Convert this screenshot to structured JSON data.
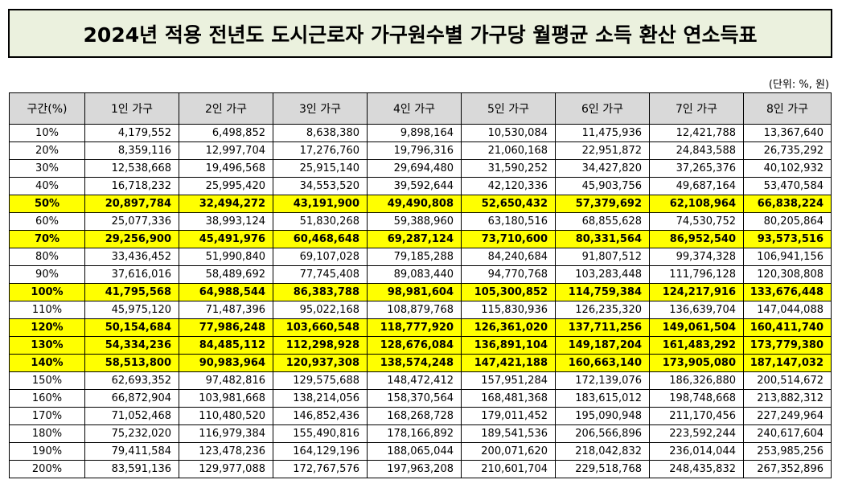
{
  "title": "2024년 적용 전년도 도시근로자 가구원수별 가구당 월평균 소득 환산 연소득표",
  "unit_note": "(단위: %, 원)",
  "colors": {
    "title_bg": "#ebf1de",
    "header_bg": "#d9d9d9",
    "highlight": "#ffff00"
  },
  "headers": [
    "구간(%)",
    "1인 가구",
    "2인 가구",
    "3인 가구",
    "4인 가구",
    "5인 가구",
    "6인 가구",
    "7인 가구",
    "8인 가구"
  ],
  "rows": [
    {
      "pct": "10%",
      "hl": false,
      "values": [
        "4,179,552",
        "6,498,852",
        "8,638,380",
        "9,898,164",
        "10,530,084",
        "11,475,936",
        "12,421,788",
        "13,367,640"
      ]
    },
    {
      "pct": "20%",
      "hl": false,
      "values": [
        "8,359,116",
        "12,997,704",
        "17,276,760",
        "19,796,316",
        "21,060,168",
        "22,951,872",
        "24,843,588",
        "26,735,292"
      ]
    },
    {
      "pct": "30%",
      "hl": false,
      "values": [
        "12,538,668",
        "19,496,568",
        "25,915,140",
        "29,694,480",
        "31,590,252",
        "34,427,820",
        "37,265,376",
        "40,102,932"
      ]
    },
    {
      "pct": "40%",
      "hl": false,
      "values": [
        "16,718,232",
        "25,995,420",
        "34,553,520",
        "39,592,644",
        "42,120,336",
        "45,903,756",
        "49,687,164",
        "53,470,584"
      ]
    },
    {
      "pct": "50%",
      "hl": true,
      "values": [
        "20,897,784",
        "32,494,272",
        "43,191,900",
        "49,490,808",
        "52,650,432",
        "57,379,692",
        "62,108,964",
        "66,838,224"
      ]
    },
    {
      "pct": "60%",
      "hl": false,
      "values": [
        "25,077,336",
        "38,993,124",
        "51,830,268",
        "59,388,960",
        "63,180,516",
        "68,855,628",
        "74,530,752",
        "80,205,864"
      ]
    },
    {
      "pct": "70%",
      "hl": true,
      "values": [
        "29,256,900",
        "45,491,976",
        "60,468,648",
        "69,287,124",
        "73,710,600",
        "80,331,564",
        "86,952,540",
        "93,573,516"
      ]
    },
    {
      "pct": "80%",
      "hl": false,
      "values": [
        "33,436,452",
        "51,990,840",
        "69,107,028",
        "79,185,288",
        "84,240,684",
        "91,807,512",
        "99,374,328",
        "106,941,156"
      ]
    },
    {
      "pct": "90%",
      "hl": false,
      "values": [
        "37,616,016",
        "58,489,692",
        "77,745,408",
        "89,083,440",
        "94,770,768",
        "103,283,448",
        "111,796,128",
        "120,308,808"
      ]
    },
    {
      "pct": "100%",
      "hl": true,
      "values": [
        "41,795,568",
        "64,988,544",
        "86,383,788",
        "98,981,604",
        "105,300,852",
        "114,759,384",
        "124,217,916",
        "133,676,448"
      ]
    },
    {
      "pct": "110%",
      "hl": false,
      "values": [
        "45,975,120",
        "71,487,396",
        "95,022,168",
        "108,879,768",
        "115,830,936",
        "126,235,320",
        "136,639,704",
        "147,044,088"
      ]
    },
    {
      "pct": "120%",
      "hl": true,
      "values": [
        "50,154,684",
        "77,986,248",
        "103,660,548",
        "118,777,920",
        "126,361,020",
        "137,711,256",
        "149,061,504",
        "160,411,740"
      ]
    },
    {
      "pct": "130%",
      "hl": true,
      "values": [
        "54,334,236",
        "84,485,112",
        "112,298,928",
        "128,676,084",
        "136,891,104",
        "149,187,204",
        "161,483,292",
        "173,779,380"
      ]
    },
    {
      "pct": "140%",
      "hl": true,
      "values": [
        "58,513,800",
        "90,983,964",
        "120,937,308",
        "138,574,248",
        "147,421,188",
        "160,663,140",
        "173,905,080",
        "187,147,032"
      ]
    },
    {
      "pct": "150%",
      "hl": false,
      "values": [
        "62,693,352",
        "97,482,816",
        "129,575,688",
        "148,472,412",
        "157,951,284",
        "172,139,076",
        "186,326,880",
        "200,514,672"
      ]
    },
    {
      "pct": "160%",
      "hl": false,
      "values": [
        "66,872,904",
        "103,981,668",
        "138,214,056",
        "158,370,564",
        "168,481,368",
        "183,615,012",
        "198,748,668",
        "213,882,312"
      ]
    },
    {
      "pct": "170%",
      "hl": false,
      "values": [
        "71,052,468",
        "110,480,520",
        "146,852,436",
        "168,268,728",
        "179,011,452",
        "195,090,948",
        "211,170,456",
        "227,249,964"
      ]
    },
    {
      "pct": "180%",
      "hl": false,
      "values": [
        "75,232,020",
        "116,979,384",
        "155,490,816",
        "178,166,892",
        "189,541,536",
        "206,566,896",
        "223,592,244",
        "240,617,604"
      ]
    },
    {
      "pct": "190%",
      "hl": false,
      "values": [
        "79,411,584",
        "123,478,236",
        "164,129,196",
        "188,065,044",
        "200,071,620",
        "218,042,832",
        "236,014,044",
        "253,985,256"
      ]
    },
    {
      "pct": "200%",
      "hl": false,
      "values": [
        "83,591,136",
        "129,977,088",
        "172,767,576",
        "197,963,208",
        "210,601,704",
        "229,518,768",
        "248,435,832",
        "267,352,896"
      ]
    }
  ]
}
